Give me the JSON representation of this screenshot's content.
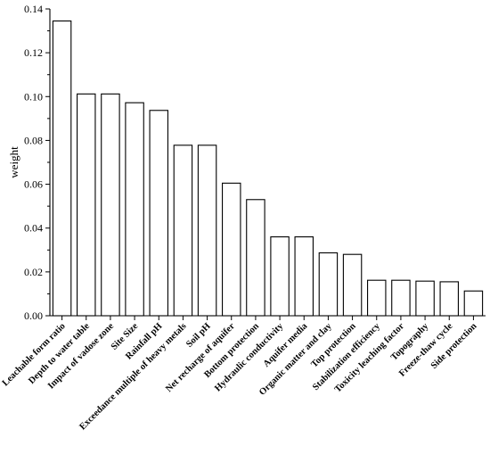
{
  "chart_data": {
    "type": "bar",
    "title": "",
    "xlabel": "",
    "ylabel": "weight",
    "ylim": [
      0,
      0.14
    ],
    "yticks": [
      "0.00",
      "0.02",
      "0.04",
      "0.06",
      "0.08",
      "0.10",
      "0.12",
      "0.14"
    ],
    "grid": false,
    "legend": "none",
    "bar_fill": "#ffffff",
    "bar_stroke": "#000000",
    "categories": [
      "Leachable form ratio",
      "Depth to water table",
      "Impact of vadose zone",
      "Site Size",
      "Rainfall pH",
      "Exceedance multiple of heavy metals",
      "Soil pH",
      "Net recharge of aquifer",
      "Bottom protection",
      "Hydraulic conductivity",
      "Aquifer media",
      "Organic matter and clay",
      "Top protection",
      "Stabilization efficiency",
      "Toxicity leaching factor",
      "Topography",
      "Freeze-thaw cycle",
      "Side protection"
    ],
    "values": [
      0.1345,
      0.1012,
      0.1012,
      0.0972,
      0.0937,
      0.0778,
      0.0778,
      0.0605,
      0.053,
      0.036,
      0.036,
      0.0287,
      0.028,
      0.0162,
      0.0162,
      0.0158,
      0.0155,
      0.0113
    ]
  }
}
